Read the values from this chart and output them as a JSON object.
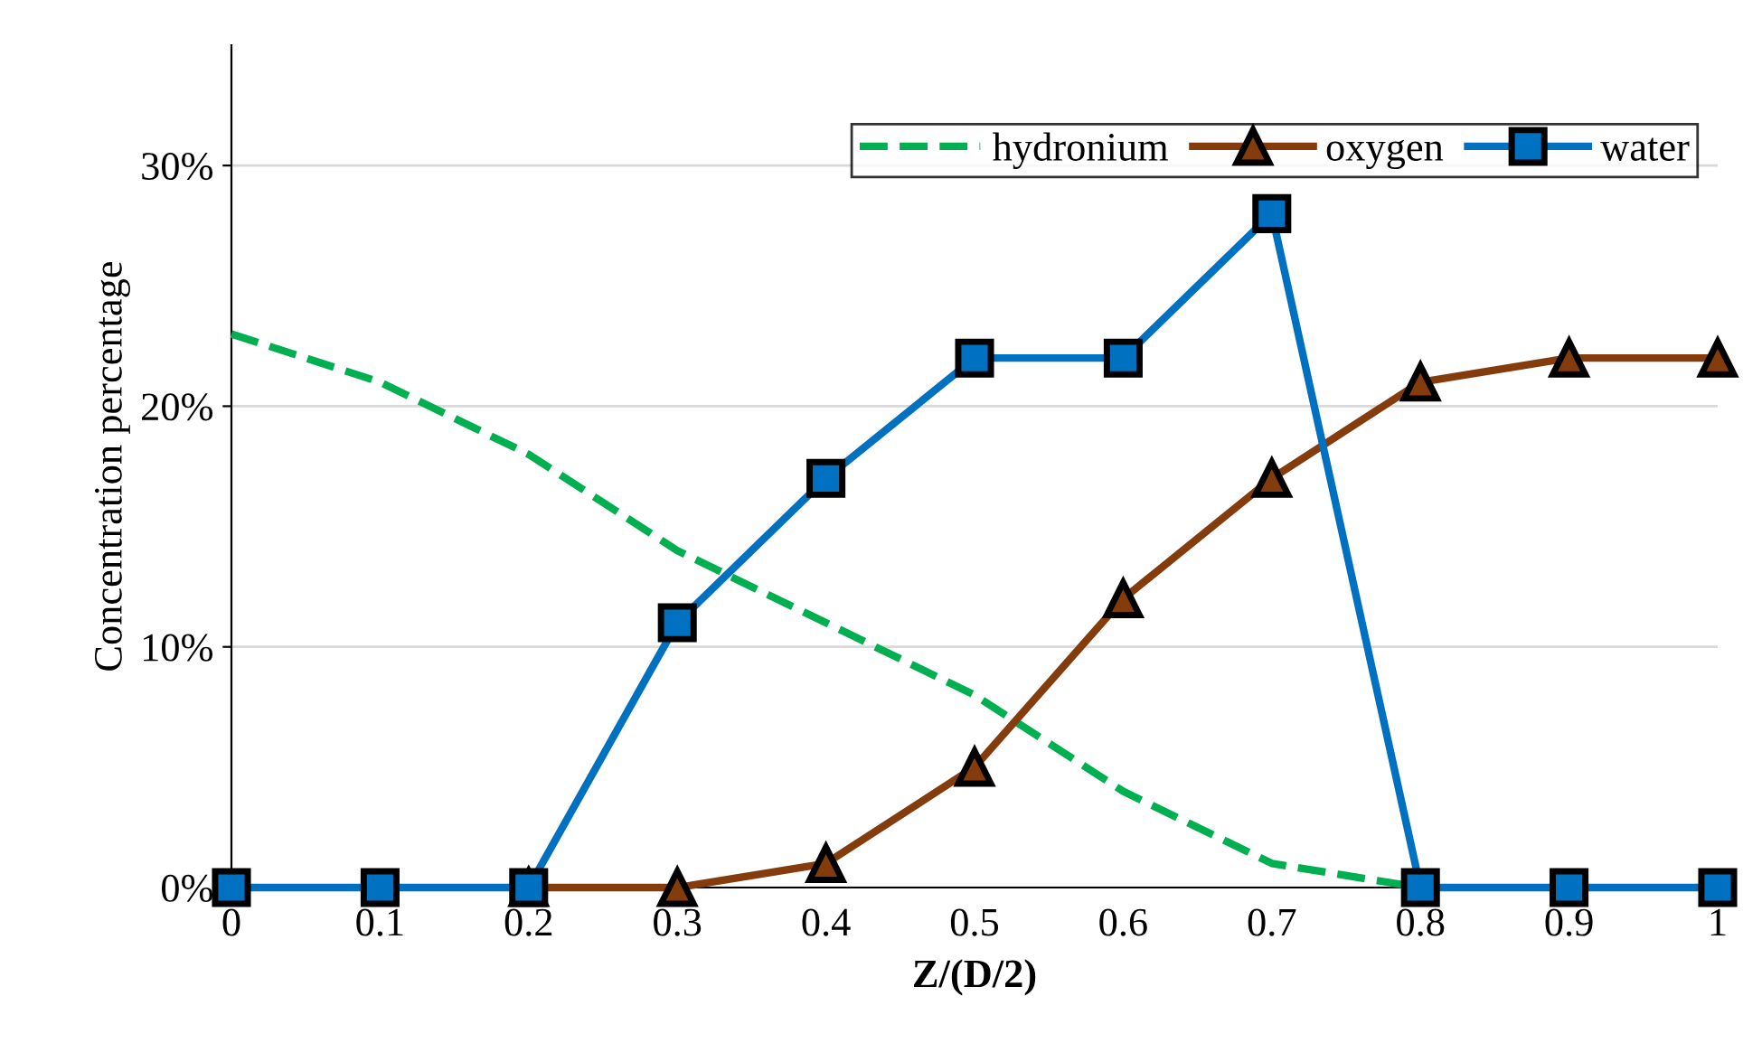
{
  "chart_data": {
    "type": "line",
    "xlabel": "Z/(D/2)",
    "ylabel": "Concentration percentage",
    "x": [
      0,
      0.1,
      0.2,
      0.3,
      0.4,
      0.5,
      0.6,
      0.7,
      0.8,
      0.9,
      1
    ],
    "series": [
      {
        "name": "hydronium",
        "color": "#00b050",
        "line_style": "dashed",
        "marker": "none",
        "values": [
          23,
          21,
          18,
          14,
          11,
          8,
          4,
          1,
          0,
          null,
          null
        ]
      },
      {
        "name": "oxygen",
        "color": "#843c0c",
        "line_style": "solid",
        "marker": "triangle",
        "values": [
          null,
          null,
          0,
          0,
          1,
          5,
          12,
          17,
          21,
          22,
          22
        ]
      },
      {
        "name": "water",
        "color": "#0070c0",
        "line_style": "solid",
        "marker": "square",
        "values": [
          0,
          0,
          0,
          11,
          17,
          22,
          22,
          28,
          0,
          0,
          0
        ]
      }
    ],
    "xlim": [
      0,
      1
    ],
    "xticks": [
      0,
      0.1,
      0.2,
      0.3,
      0.4,
      0.5,
      0.6,
      0.7,
      0.8,
      0.9,
      1
    ],
    "ylim": [
      0,
      35
    ],
    "yticks": [
      {
        "value": 0,
        "label": "0%"
      },
      {
        "value": 10,
        "label": "10%"
      },
      {
        "value": 20,
        "label": "20%"
      },
      {
        "value": 30,
        "label": "30%"
      }
    ],
    "grid": "y",
    "legend": "top right"
  }
}
